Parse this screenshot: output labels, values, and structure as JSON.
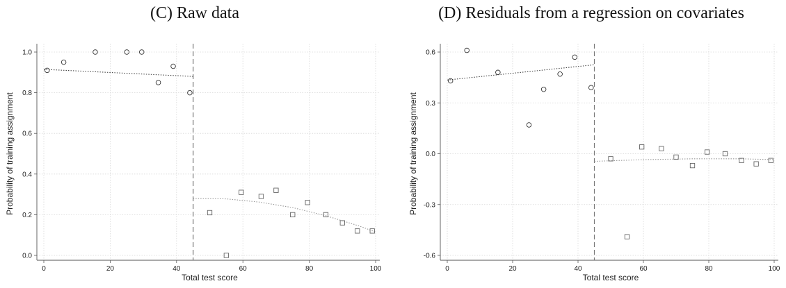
{
  "chart_data": [
    {
      "type": "scatter",
      "title": "(C) Raw data",
      "xlabel": "Total test score",
      "ylabel": "Probability of training assignment",
      "xlim": [
        0,
        100
      ],
      "ylim": [
        0,
        1
      ],
      "xticks": [
        "0",
        "20",
        "40",
        "60",
        "80",
        "100"
      ],
      "yticks": [
        "0.0",
        "0.2",
        "0.4",
        "0.6",
        "0.8",
        "1.0"
      ],
      "cutoff": 45,
      "grid": true,
      "series": [
        {
          "marker": "circle",
          "x": [
            1,
            6,
            15.5,
            25,
            29.5,
            34.5,
            39,
            44
          ],
          "y": [
            0.91,
            0.95,
            1.0,
            1.0,
            1.0,
            0.85,
            0.93,
            0.8
          ]
        },
        {
          "marker": "square",
          "x": [
            50,
            55,
            59.5,
            65.5,
            70,
            75,
            79.5,
            85,
            90,
            94.5,
            99
          ],
          "y": [
            0.21,
            0.0,
            0.31,
            0.29,
            0.32,
            0.2,
            0.26,
            0.2,
            0.16,
            0.12,
            0.12
          ]
        }
      ],
      "fits": [
        {
          "x": [
            0,
            45
          ],
          "y": [
            0.915,
            0.88
          ]
        },
        {
          "x": [
            45,
            55,
            65,
            75,
            85,
            95,
            100
          ],
          "y": [
            0.28,
            0.278,
            0.262,
            0.235,
            0.195,
            0.145,
            0.115
          ]
        }
      ]
    },
    {
      "type": "scatter",
      "title": "(D) Residuals from a regression on covariates",
      "xlabel": "Total test score",
      "ylabel": "Probability of training assignment",
      "xlim": [
        0,
        100
      ],
      "ylim": [
        -0.6,
        0.6
      ],
      "xticks": [
        "0",
        "20",
        "40",
        "60",
        "80",
        "100"
      ],
      "yticks": [
        "-0.6",
        "-0.3",
        "0.0",
        "0.3",
        "0.6"
      ],
      "cutoff": 45,
      "grid": true,
      "series": [
        {
          "marker": "circle",
          "x": [
            1,
            6,
            15.5,
            25,
            29.5,
            34.5,
            39,
            44
          ],
          "y": [
            0.43,
            0.61,
            0.48,
            0.17,
            0.38,
            0.47,
            0.57,
            0.39
          ]
        },
        {
          "marker": "square",
          "x": [
            50,
            55,
            59.5,
            65.5,
            70,
            75,
            79.5,
            85,
            90,
            94.5,
            99
          ],
          "y": [
            -0.03,
            -0.49,
            0.04,
            0.03,
            -0.02,
            -0.07,
            0.01,
            0.0,
            -0.04,
            -0.06,
            -0.04
          ]
        }
      ],
      "fits": [
        {
          "x": [
            0,
            45
          ],
          "y": [
            0.435,
            0.525
          ]
        },
        {
          "x": [
            45,
            60,
            75,
            90,
            100
          ],
          "y": [
            -0.045,
            -0.035,
            -0.03,
            -0.03,
            -0.035
          ]
        }
      ]
    }
  ]
}
